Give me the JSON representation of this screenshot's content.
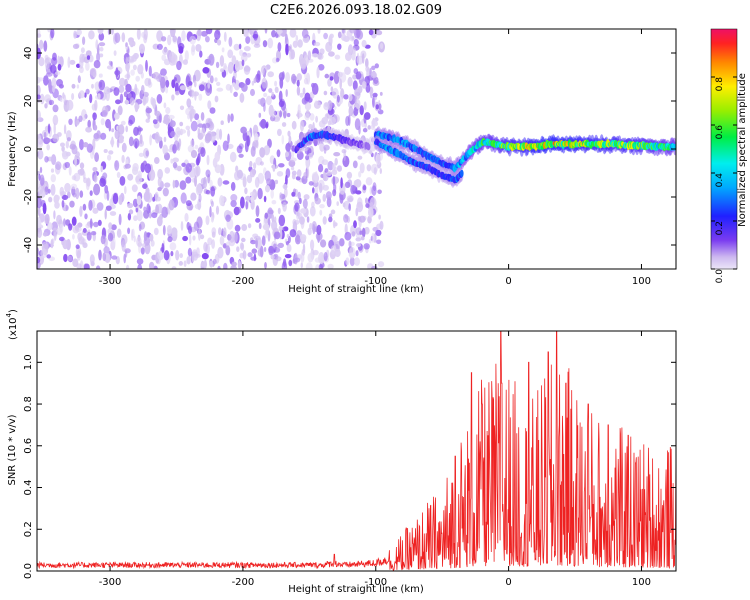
{
  "figure": {
    "title": "C2E6.2026.093.18.02.G09"
  },
  "chart_data": [
    {
      "type": "heatmap",
      "name": "spectrogram",
      "xlabel": "Height of straight line (km)",
      "ylabel": "Frequency (Hz)",
      "xlim": [
        -355,
        126
      ],
      "ylim": [
        -50,
        50
      ],
      "x_ticks": [
        -300,
        -200,
        -100,
        0,
        100
      ],
      "y_ticks": [
        -40,
        -20,
        0,
        20,
        40
      ],
      "colorbar": {
        "label": "Normalized spectral amplitude",
        "range": [
          0,
          1
        ],
        "ticks": [
          0.0,
          0.2,
          0.4,
          0.6,
          0.8
        ]
      },
      "noise_region": {
        "x_range": [
          -355,
          -100
        ],
        "y_range": [
          -50,
          50
        ],
        "typical_amplitude": 0.1
      },
      "ridges": [
        {
          "name": "early segment",
          "x": [
            -160,
            -150,
            -140,
            -130,
            -120,
            -105
          ],
          "y": [
            0,
            5,
            6,
            5,
            3,
            1
          ],
          "amplitude": [
            0.15,
            0.35,
            0.3,
            0.2,
            0.15,
            0.1
          ]
        },
        {
          "name": "upper branch",
          "x": [
            -100,
            -90,
            -80,
            -70,
            -60,
            -50,
            -40,
            -30,
            -20,
            -10,
            0,
            10,
            20,
            30,
            40,
            50,
            60,
            70,
            80,
            90,
            100,
            110,
            120,
            126
          ],
          "y": [
            6,
            5,
            3,
            0,
            -3,
            -6,
            -8,
            -2,
            3,
            2,
            1,
            1,
            1,
            2,
            2,
            2,
            2,
            2,
            2,
            1.5,
            1.5,
            1,
            1,
            1
          ],
          "amplitude": [
            0.3,
            0.35,
            0.35,
            0.3,
            0.3,
            0.3,
            0.35,
            0.45,
            0.55,
            0.6,
            0.7,
            0.75,
            0.8,
            0.85,
            0.8,
            0.8,
            0.75,
            0.75,
            0.7,
            0.7,
            0.65,
            0.6,
            0.55,
            0.5
          ]
        },
        {
          "name": "lower branch",
          "x": [
            -100,
            -90,
            -80,
            -70,
            -60,
            -50,
            -40,
            -35
          ],
          "y": [
            3,
            0,
            -3,
            -6,
            -8,
            -11,
            -13,
            -10
          ],
          "amplitude": [
            0.3,
            0.35,
            0.3,
            0.3,
            0.25,
            0.25,
            0.3,
            0.3
          ]
        }
      ]
    },
    {
      "type": "line",
      "name": "snr",
      "xlabel": "Height of straight line (km)",
      "ylabel": "SNR (10 * v/v)",
      "y_multiplier_label": "(x10",
      "y_multiplier_exponent": "4",
      "y_multiplier_close": ")",
      "xlim": [
        -355,
        126
      ],
      "ylim": [
        0,
        1.15
      ],
      "x_ticks": [
        -300,
        -200,
        -100,
        0,
        100
      ],
      "y_ticks": [
        0.0,
        0.2,
        0.4,
        0.6,
        0.8,
        1.0
      ],
      "series": [
        {
          "name": "SNR",
          "color": "#ee2222",
          "x": [
            -355,
            -300,
            -250,
            -200,
            -160,
            -140,
            -131,
            -125,
            -100,
            -90,
            -80,
            -70,
            -60,
            -50,
            -45,
            -40,
            -35,
            -30,
            -25,
            -20,
            -15,
            -10,
            -5,
            -2,
            0,
            5,
            10,
            15,
            20,
            25,
            30,
            35,
            40,
            45,
            50,
            55,
            60,
            70,
            80,
            90,
            100,
            110,
            120,
            126
          ],
          "baseline": [
            0.03,
            0.03,
            0.03,
            0.03,
            0.03,
            0.03,
            0.04,
            0.03,
            0.04,
            0.06,
            0.09,
            0.13,
            0.17,
            0.2,
            0.25,
            0.3,
            0.34,
            0.38,
            0.42,
            0.45,
            0.46,
            0.5,
            0.52,
            0.5,
            0.48,
            0.45,
            0.42,
            0.4,
            0.42,
            0.45,
            0.48,
            0.5,
            0.5,
            0.48,
            0.45,
            0.42,
            0.4,
            0.37,
            0.35,
            0.33,
            0.32,
            0.3,
            0.3,
            0.3
          ],
          "peaks": [
            [
              -131,
              0.08
            ],
            [
              -40,
              0.55
            ],
            [
              -28,
              0.95
            ],
            [
              -20,
              0.8
            ],
            [
              -5,
              0.9
            ],
            [
              -6,
              1.15
            ],
            [
              15,
              1.0
            ],
            [
              30,
              1.05
            ],
            [
              36,
              1.15
            ],
            [
              43,
              0.9
            ],
            [
              60,
              0.8
            ],
            [
              75,
              0.7
            ],
            [
              90,
              0.65
            ]
          ]
        }
      ]
    }
  ]
}
